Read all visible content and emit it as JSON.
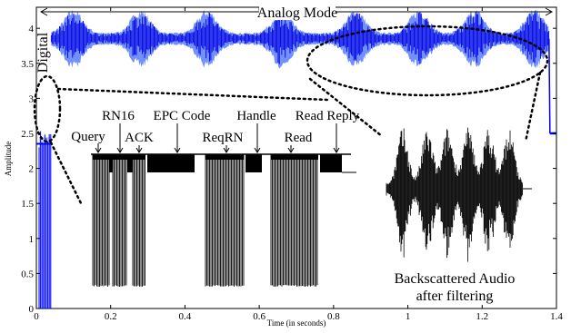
{
  "chart_data": {
    "type": "line",
    "xlabel": "Time (in seconds)",
    "ylabel": "Amplitude",
    "xlim": [
      0,
      1.4
    ],
    "ylim": [
      0,
      4.3
    ],
    "x_ticks": [
      "0",
      "0.2",
      "0.4",
      "0.6",
      "0.8",
      "1",
      "1.2",
      "1.4"
    ],
    "y_ticks": [
      "0",
      "0.5",
      "1",
      "1.5",
      "2",
      "2.5",
      "3",
      "3.5",
      "4"
    ],
    "series": [
      {
        "name": "",
        "color": "#0000ff",
        "segments": [
          {
            "mode": "Digital",
            "x_range": [
              0.0,
              0.04
            ],
            "y_range": [
              0.0,
              2.6
            ]
          },
          {
            "mode": "Analog",
            "x_range": [
              0.04,
              1.38
            ],
            "y_center": 3.85,
            "y_range": [
              3.3,
              4.25
            ]
          },
          {
            "mode": "Idle",
            "x_range": [
              1.38,
              1.4
            ],
            "y_level": 2.5
          }
        ]
      }
    ],
    "mode_labels": {
      "digital": "Digital",
      "analog": "Analog Mode"
    },
    "inset_command_labels": [
      "Query",
      "RN16",
      "ACK",
      "EPC Code",
      "ReqRN",
      "Handle",
      "Read",
      "Read Reply"
    ],
    "inset_audio_label": [
      "Backscattered Audio",
      "after filtering"
    ]
  }
}
